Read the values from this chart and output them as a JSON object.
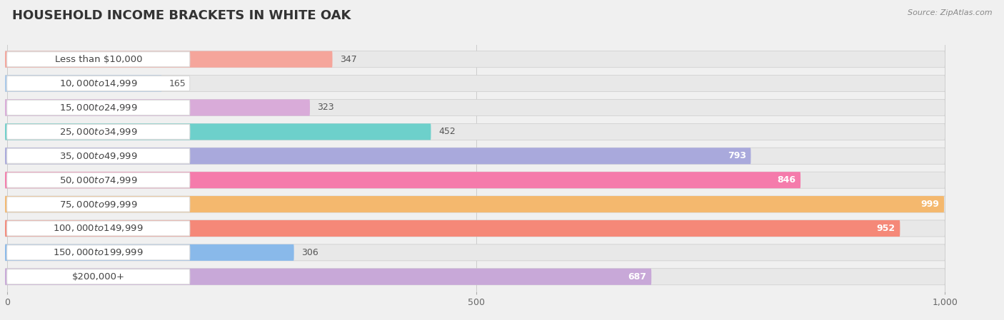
{
  "title": "HOUSEHOLD INCOME BRACKETS IN WHITE OAK",
  "source": "Source: ZipAtlas.com",
  "categories": [
    "Less than $10,000",
    "$10,000 to $14,999",
    "$15,000 to $24,999",
    "$25,000 to $34,999",
    "$35,000 to $49,999",
    "$50,000 to $74,999",
    "$75,000 to $99,999",
    "$100,000 to $149,999",
    "$150,000 to $199,999",
    "$200,000+"
  ],
  "values": [
    347,
    165,
    323,
    452,
    793,
    846,
    999,
    952,
    306,
    687
  ],
  "bar_colors": [
    "#F5A59B",
    "#A9C9EA",
    "#D9ABD9",
    "#6DD0CB",
    "#A9A9DC",
    "#F57BAB",
    "#F4B86E",
    "#F58878",
    "#89B9EA",
    "#C8A8D8"
  ],
  "xlim_max": 1000,
  "display_max": 1050,
  "xticks": [
    0,
    500,
    1000
  ],
  "xticklabels": [
    "0",
    "500",
    "1,000"
  ],
  "bg_color": "#f0f0f0",
  "bar_bg_color": "#e8e8e8",
  "label_bg_color": "#ffffff",
  "title_color": "#333333",
  "label_color": "#444444",
  "title_fontsize": 13,
  "label_fontsize": 9.5,
  "value_fontsize": 9,
  "value_threshold": 500
}
